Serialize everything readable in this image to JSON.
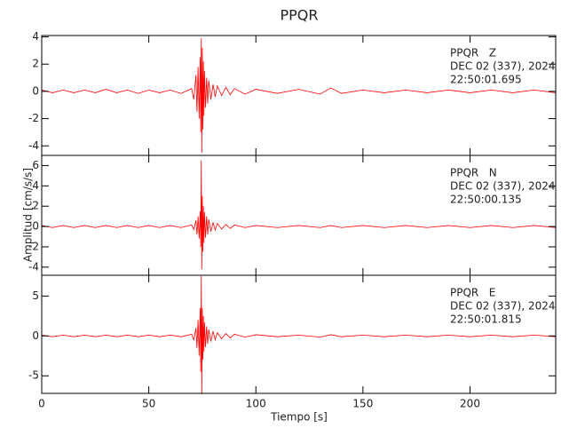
{
  "chart_data": [
    {
      "type": "line",
      "title": "PPQR",
      "annotation": [
        "PPQR   Z",
        "DEC 02 (337), 2024",
        "22:50:01.695"
      ],
      "color": "#ff0000",
      "x": [
        0,
        5,
        10,
        15,
        20,
        25,
        30,
        35,
        40,
        45,
        50,
        55,
        60,
        65,
        70,
        71,
        72,
        72.5,
        73,
        73.5,
        74,
        74.25,
        74.5,
        74.75,
        75,
        75.25,
        75.5,
        75.75,
        76,
        76.5,
        77,
        77.5,
        78,
        79,
        80,
        81,
        82,
        84,
        86,
        88,
        90,
        95,
        100,
        110,
        120,
        130,
        135,
        140,
        150,
        160,
        170,
        180,
        190,
        200,
        210,
        220,
        230,
        240
      ],
      "values": [
        0.1,
        -0.1,
        0.1,
        -0.1,
        0.1,
        -0.1,
        0.15,
        -0.1,
        0.1,
        -0.15,
        0.1,
        -0.1,
        0.1,
        -0.15,
        0.2,
        -0.6,
        1.2,
        -1.5,
        1.8,
        -2.0,
        2.5,
        -3.0,
        3.9,
        -4.5,
        3.2,
        -2.8,
        2.2,
        -1.8,
        1.5,
        -1.2,
        1.0,
        -0.9,
        0.8,
        -0.6,
        0.5,
        -0.4,
        0.4,
        -0.3,
        0.3,
        -0.25,
        0.2,
        -0.2,
        0.15,
        -0.15,
        0.15,
        -0.2,
        0.25,
        -0.15,
        0.1,
        -0.1,
        0.1,
        -0.1,
        0.1,
        -0.1,
        0.1,
        -0.1,
        0.1,
        -0.1
      ],
      "xlim": [
        0,
        240
      ],
      "xticks": [
        0,
        50,
        100,
        150,
        200
      ],
      "ylim": [
        -4.7,
        4.1
      ],
      "yticks": [
        -4,
        -2,
        0,
        2,
        4
      ]
    },
    {
      "type": "line",
      "ylabel": "Amplitud [cm/s/s]",
      "annotation": [
        "PPQR   N",
        "DEC 02 (337), 2024",
        "22:50:00.135"
      ],
      "color": "#ff0000",
      "x": [
        0,
        5,
        10,
        15,
        20,
        25,
        30,
        35,
        40,
        45,
        50,
        55,
        60,
        65,
        70,
        71,
        72,
        72.5,
        73,
        73.5,
        74,
        74.25,
        74.5,
        74.75,
        75,
        75.25,
        75.5,
        75.75,
        76,
        76.5,
        77,
        77.5,
        78,
        79,
        80,
        81,
        82,
        84,
        86,
        88,
        90,
        95,
        100,
        110,
        120,
        130,
        135,
        140,
        150,
        160,
        170,
        180,
        190,
        200,
        210,
        220,
        230,
        240
      ],
      "values": [
        0.1,
        -0.1,
        0.1,
        -0.1,
        0.1,
        -0.1,
        0.1,
        -0.1,
        0.1,
        -0.1,
        0.1,
        -0.1,
        0.1,
        -0.1,
        0.15,
        -0.3,
        0.6,
        -0.8,
        1.0,
        -1.2,
        1.5,
        -2.0,
        6.5,
        -4.2,
        3.0,
        -2.5,
        2.0,
        -1.6,
        1.4,
        -1.1,
        1.0,
        -0.8,
        0.7,
        -0.5,
        0.4,
        -0.35,
        0.3,
        -0.25,
        0.2,
        -0.2,
        0.15,
        -0.1,
        0.1,
        -0.1,
        0.1,
        -0.1,
        0.1,
        -0.1,
        0.1,
        -0.1,
        0.1,
        -0.1,
        0.1,
        -0.1,
        0.1,
        -0.1,
        0.1,
        -0.1
      ],
      "xlim": [
        0,
        240
      ],
      "xticks": [
        0,
        50,
        100,
        150,
        200
      ],
      "ylim": [
        -4.8,
        7
      ],
      "yticks": [
        -4,
        -2,
        0,
        2,
        4,
        6
      ]
    },
    {
      "type": "line",
      "xlabel": "Tiempo [s]",
      "annotation": [
        "PPQR   E",
        "DEC 02 (337), 2024",
        "22:50:01.815"
      ],
      "color": "#ff0000",
      "x": [
        0,
        5,
        10,
        15,
        20,
        25,
        30,
        35,
        40,
        45,
        50,
        55,
        60,
        65,
        70,
        71,
        72,
        72.5,
        73,
        73.5,
        74,
        74.25,
        74.5,
        74.75,
        75,
        75.25,
        75.5,
        75.75,
        76,
        76.5,
        77,
        77.5,
        78,
        79,
        80,
        81,
        82,
        84,
        86,
        88,
        90,
        95,
        100,
        110,
        120,
        130,
        135,
        140,
        150,
        160,
        170,
        180,
        190,
        200,
        210,
        220,
        230,
        240
      ],
      "values": [
        0.1,
        -0.1,
        0.1,
        -0.1,
        0.1,
        -0.1,
        0.1,
        -0.1,
        0.1,
        -0.1,
        0.1,
        -0.1,
        0.1,
        -0.1,
        0.2,
        -0.5,
        1.0,
        -1.5,
        2.0,
        -2.5,
        3.5,
        -4.5,
        7.5,
        -7.3,
        3.5,
        -3.0,
        2.5,
        -2.0,
        1.7,
        -1.4,
        1.2,
        -1.0,
        0.8,
        -0.7,
        0.6,
        -0.5,
        0.4,
        -0.35,
        0.3,
        -0.25,
        0.2,
        -0.15,
        0.15,
        -0.1,
        0.1,
        -0.15,
        0.15,
        -0.1,
        0.1,
        -0.1,
        0.1,
        -0.1,
        0.1,
        -0.1,
        0.1,
        -0.1,
        0.1,
        -0.1
      ],
      "xlim": [
        0,
        240
      ],
      "xticks": [
        0,
        50,
        100,
        150,
        200
      ],
      "ylim": [
        -7.2,
        7.6
      ],
      "yticks": [
        -5,
        0,
        5
      ]
    }
  ]
}
